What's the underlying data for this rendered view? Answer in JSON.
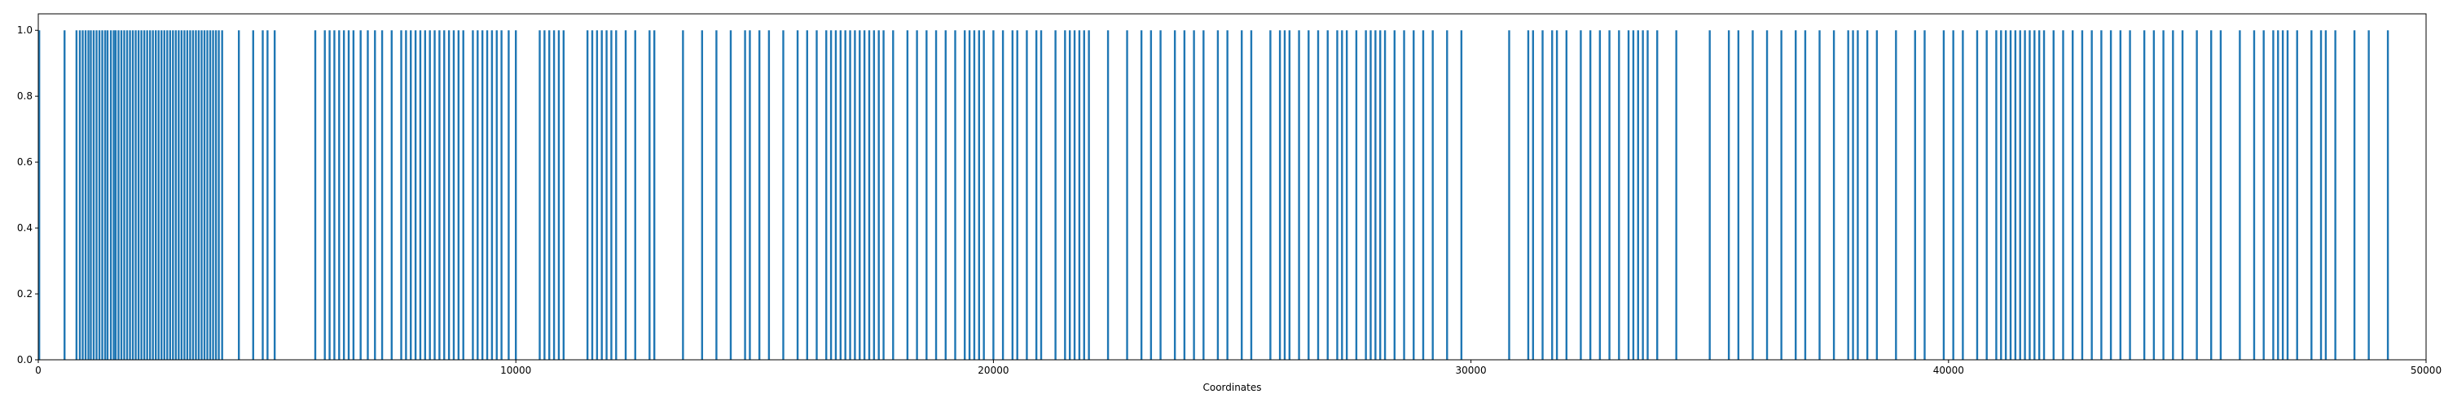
{
  "chart_data": {
    "type": "bar",
    "title": "",
    "xlabel": "Coordinates",
    "ylabel": "",
    "xlim": [
      0,
      50000
    ],
    "ylim": [
      0,
      1.05
    ],
    "grid": false,
    "legend": "none",
    "colors": {
      "bar": "#1f77b4",
      "axis": "#000000",
      "background": "#ffffff"
    },
    "x_ticks": [
      {
        "value": 0,
        "label": "0"
      },
      {
        "value": 10000,
        "label": "10000"
      },
      {
        "value": 20000,
        "label": "20000"
      },
      {
        "value": 30000,
        "label": "30000"
      },
      {
        "value": 40000,
        "label": "40000"
      },
      {
        "value": 50000,
        "label": "50000"
      }
    ],
    "y_ticks": [
      {
        "value": 0.0,
        "label": "0.0"
      },
      {
        "value": 0.2,
        "label": "0.2"
      },
      {
        "value": 0.4,
        "label": "0.4"
      },
      {
        "value": 0.6,
        "label": "0.6"
      },
      {
        "value": 0.8,
        "label": "0.8"
      },
      {
        "value": 1.0,
        "label": "1.0"
      }
    ],
    "series": [
      {
        "value": 1,
        "positions": [
          20,
          550,
          800,
          870,
          930,
          990,
          1050,
          1100,
          1160,
          1220,
          1280,
          1340,
          1400,
          1450,
          1520,
          1580,
          1620,
          1680,
          1740,
          1800,
          1860,
          1920,
          1980,
          2040,
          2100,
          2160,
          2220,
          2280,
          2340,
          2400,
          2460,
          2520,
          2580,
          2640,
          2700,
          2760,
          2820,
          2880,
          2940,
          3000,
          3060,
          3120,
          3180,
          3240,
          3300,
          3360,
          3420,
          3480,
          3540,
          3600,
          3660,
          3720,
          3780,
          3850,
          4200,
          4500,
          4700,
          4800,
          4950,
          5800,
          6000,
          6100,
          6200,
          6300,
          6400,
          6500,
          6600,
          6750,
          6900,
          7050,
          7200,
          7400,
          7600,
          7700,
          7800,
          7900,
          8000,
          8100,
          8200,
          8300,
          8400,
          8500,
          8600,
          8700,
          8800,
          8900,
          9100,
          9200,
          9300,
          9400,
          9500,
          9600,
          9700,
          9850,
          10000,
          10500,
          10600,
          10700,
          10800,
          10900,
          11000,
          11500,
          11600,
          11700,
          11800,
          11900,
          12000,
          12100,
          12300,
          12500,
          12800,
          12900,
          13500,
          13900,
          14200,
          14500,
          14800,
          14900,
          15100,
          15300,
          15600,
          15900,
          16100,
          16300,
          16500,
          16600,
          16700,
          16800,
          16900,
          17000,
          17100,
          17200,
          17300,
          17400,
          17500,
          17600,
          17700,
          17900,
          18200,
          18400,
          18600,
          18800,
          19000,
          19200,
          19400,
          19500,
          19600,
          19700,
          19800,
          20000,
          20200,
          20400,
          20500,
          20700,
          20900,
          21000,
          21300,
          21500,
          21600,
          21700,
          21800,
          21900,
          22000,
          22400,
          22800,
          23100,
          23300,
          23500,
          23800,
          24000,
          24200,
          24400,
          24700,
          24900,
          25200,
          25400,
          25800,
          26000,
          26100,
          26200,
          26400,
          26600,
          26800,
          27000,
          27200,
          27300,
          27400,
          27600,
          27800,
          27900,
          28000,
          28100,
          28200,
          28400,
          28600,
          28800,
          29000,
          29200,
          29500,
          29800,
          30800,
          31200,
          31300,
          31500,
          31700,
          31800,
          32000,
          32300,
          32500,
          32700,
          32900,
          33100,
          33300,
          33400,
          33500,
          33600,
          33700,
          33900,
          34300,
          35000,
          35400,
          35600,
          35900,
          36200,
          36500,
          36800,
          37000,
          37300,
          37600,
          37900,
          38000,
          38100,
          38300,
          38500,
          38900,
          39300,
          39500,
          39900,
          40100,
          40300,
          40600,
          40800,
          41000,
          41100,
          41200,
          41300,
          41400,
          41500,
          41600,
          41700,
          41800,
          41900,
          42000,
          42200,
          42400,
          42600,
          42800,
          43000,
          43200,
          43400,
          43600,
          43800,
          44100,
          44300,
          44500,
          44700,
          44900,
          45200,
          45500,
          45700,
          46100,
          46400,
          46600,
          46800,
          46900,
          47000,
          47100,
          47300,
          47600,
          47800,
          47900,
          48100,
          48500,
          48800,
          49200
        ]
      }
    ]
  }
}
